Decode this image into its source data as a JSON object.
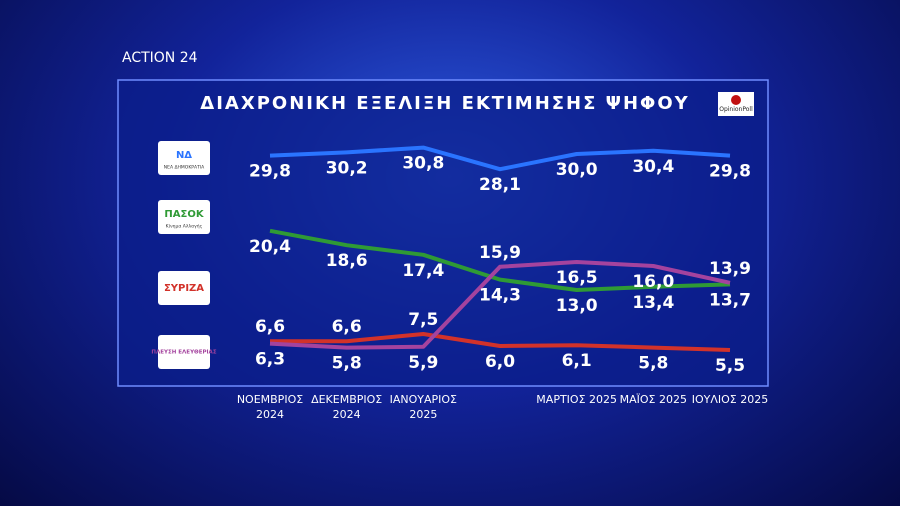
{
  "brand": "ACTION 24",
  "source": "OpinionPoll",
  "chart_data": {
    "type": "line",
    "title": "ΔΙΑΧΡΟΝΙΚΗ ΕΞΕΛΙΞΗ ΕΚΤΙΜΗΣΗΣ ΨΗΦΟΥ",
    "categories": [
      "ΝΟΕΜΒΡΙΟΣ 2024",
      "ΔΕΚΕΜΒΡΙΟΣ 2024",
      "ΙΑΝΟΥΑΡΙΟΣ 2025",
      null,
      "ΜΑΡΤΙΟΣ 2025",
      "ΜΑΪΟΣ 2025",
      "ΙΟΥΛΙΟΣ 2025"
    ],
    "ylim": [
      3,
      33
    ],
    "series": [
      {
        "name": "ΝΔ",
        "subtitle": "ΝΕΑ ΔΗΜΟΚΡΑΤΙΑ",
        "color": "#2a74ff",
        "values": [
          29.8,
          30.2,
          30.8,
          28.1,
          30.0,
          30.4,
          29.8
        ],
        "value_labels": [
          "29,8",
          "30,2",
          "30,8",
          "28,1",
          "30,0",
          "30,4",
          "29,8"
        ]
      },
      {
        "name": "ΠΑΣΟΚ",
        "subtitle": "Κίνημα Αλλαγής",
        "color": "#2f9a35",
        "values": [
          20.4,
          18.6,
          17.4,
          14.3,
          13.0,
          13.4,
          13.7
        ],
        "value_labels": [
          "20,4",
          "18,6",
          "17,4",
          "14,3",
          "13,0",
          "13,4",
          "13,7"
        ]
      },
      {
        "name": "ΣΥΡΙΖΑ",
        "color": "#d2322a",
        "values": [
          6.6,
          6.6,
          7.5,
          6.0,
          6.1,
          5.8,
          5.5
        ],
        "value_labels": [
          "6,6",
          "6,6",
          "7,5",
          "6,0",
          "6,1",
          "5,8",
          "5,5"
        ]
      },
      {
        "name": "ΠΛΕΥΣΗ ΕΛΕΥΘΕΡΙΑΣ",
        "color": "#a4439e",
        "values": [
          6.3,
          5.8,
          5.9,
          15.9,
          16.5,
          16.0,
          13.9
        ],
        "value_labels": [
          "6,3",
          "5,8",
          "5,9",
          "15,9",
          "16,5",
          "16,0",
          "13,9"
        ]
      }
    ]
  }
}
